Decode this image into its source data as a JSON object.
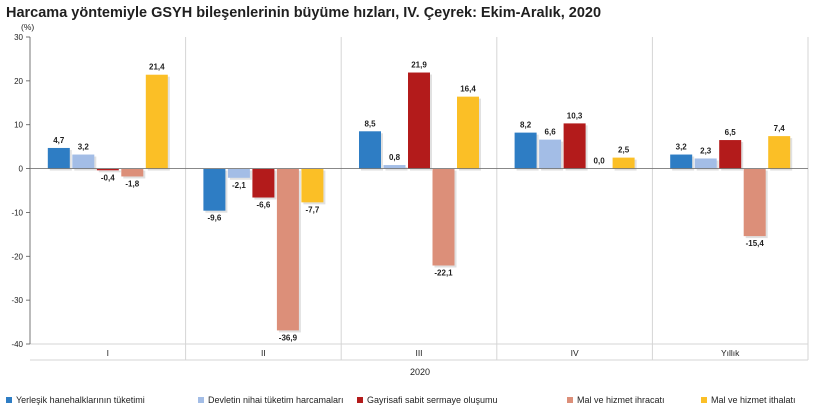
{
  "chart_data": {
    "type": "bar",
    "title": "Harcama yöntemiyle GSYH bileşenlerinin büyüme hızları, IV. Çeyrek: Ekim-Aralık, 2020",
    "ylabel": "(%)",
    "xlabel": "2020",
    "ylim": [
      -40,
      30
    ],
    "yticks": [
      -40,
      -30,
      -20,
      -10,
      0,
      10,
      20,
      30
    ],
    "categories": [
      "I",
      "II",
      "III",
      "IV",
      "Yıllık"
    ],
    "legend_position": "bottom",
    "series": [
      {
        "name": "Yerleşik hanehalklarının  tüketimi",
        "color": "#2e7dc4",
        "values": [
          4.7,
          -9.6,
          8.5,
          8.2,
          3.2
        ],
        "labels": [
          "4,7",
          "-9,6",
          "8,5",
          "8,2",
          "3,2"
        ]
      },
      {
        "name": "Devletin nihai tüketim harcamaları",
        "color": "#a3bde6",
        "values": [
          3.2,
          -2.1,
          0.8,
          6.6,
          2.3
        ],
        "labels": [
          "3,2",
          "-2,1",
          "0,8",
          "6,6",
          "2,3"
        ]
      },
      {
        "name": "Gayrisafi sabit sermaye oluşumu",
        "color": "#b31b1b",
        "values": [
          -0.4,
          -6.6,
          21.9,
          10.3,
          6.5
        ],
        "labels": [
          "-0,4",
          "-6,6",
          "21,9",
          "10,3",
          "6,5"
        ]
      },
      {
        "name": "Mal ve hizmet ihracatı",
        "color": "#dc8f79",
        "values": [
          -1.8,
          -36.9,
          -22.1,
          0.0,
          -15.4
        ],
        "labels": [
          "-1,8",
          "-36,9",
          "-22,1",
          "0,0",
          "-15,4"
        ]
      },
      {
        "name": "Mal ve hizmet ithalatı",
        "color": "#fbbf26",
        "values": [
          21.4,
          -7.7,
          16.4,
          2.5,
          7.4
        ],
        "labels": [
          "21,4",
          "-7,7",
          "16,4",
          "2,5",
          "7,4"
        ]
      }
    ]
  }
}
